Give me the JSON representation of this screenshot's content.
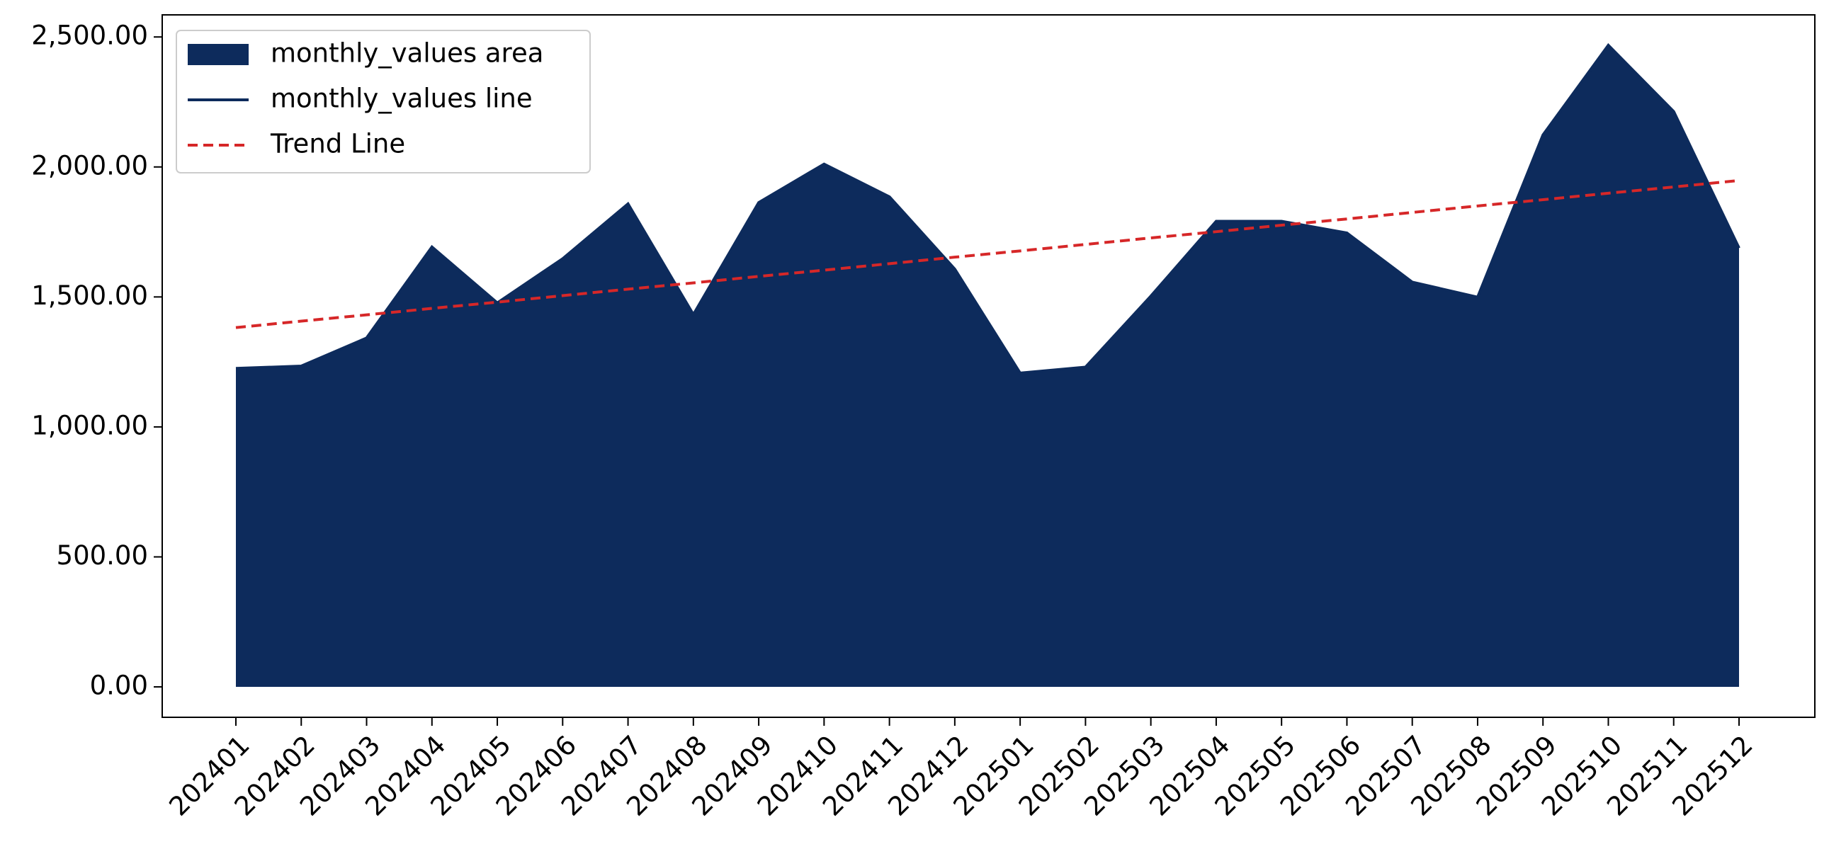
{
  "chart_data": {
    "type": "area",
    "categories": [
      "202401",
      "202402",
      "202403",
      "202404",
      "202405",
      "202406",
      "202407",
      "202408",
      "202409",
      "202410",
      "202411",
      "202412",
      "202501",
      "202502",
      "202503",
      "202504",
      "202505",
      "202506",
      "202507",
      "202508",
      "202509",
      "202510",
      "202511",
      "202512"
    ],
    "series": [
      {
        "name": "monthly_values area",
        "type": "area",
        "color": "#0d2b5c",
        "values": [
          1225,
          1234,
          1342,
          1692,
          1477,
          1647,
          1858,
          1432,
          1863,
          2011,
          1885,
          1607,
          1207,
          1230,
          1503,
          1791,
          1791,
          1746,
          1557,
          1499,
          2123,
          2468,
          2213,
          1688
        ]
      },
      {
        "name": "monthly_values line",
        "type": "line",
        "color": "#0d2b5c",
        "values": [
          1225,
          1234,
          1342,
          1692,
          1477,
          1647,
          1858,
          1432,
          1863,
          2011,
          1885,
          1607,
          1207,
          1230,
          1503,
          1791,
          1791,
          1746,
          1557,
          1499,
          2123,
          2468,
          2213,
          1688
        ]
      },
      {
        "name": "Trend Line",
        "type": "dashed",
        "color": "#d62728",
        "values": [
          1382,
          1407,
          1431,
          1456,
          1480,
          1505,
          1530,
          1554,
          1579,
          1603,
          1628,
          1653,
          1677,
          1702,
          1727,
          1751,
          1776,
          1800,
          1825,
          1850,
          1874,
          1899,
          1923,
          1948
        ]
      }
    ],
    "ylim": [
      -117,
      2585
    ],
    "yticks": [
      {
        "value": 0,
        "label": "0.00"
      },
      {
        "value": 500,
        "label": "500.00"
      },
      {
        "value": 1000,
        "label": "1,000.00"
      },
      {
        "value": 1500,
        "label": "1,500.00"
      },
      {
        "value": 2000,
        "label": "2,000.00"
      },
      {
        "value": 2500,
        "label": "2,500.00"
      }
    ],
    "legend": "upper left",
    "grid": false
  }
}
